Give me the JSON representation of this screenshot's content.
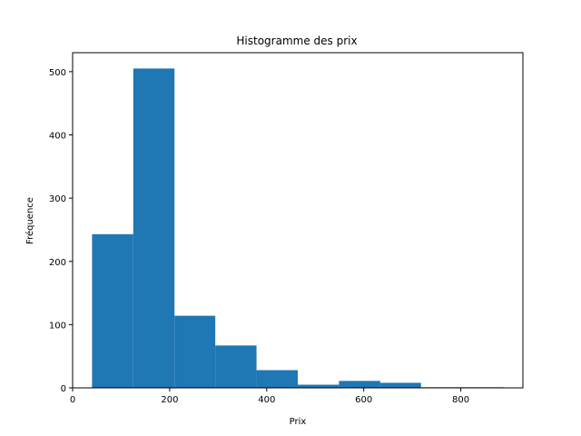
{
  "chart_data": {
    "type": "bar",
    "title": "Histogramme des prix",
    "xlabel": "Prix",
    "ylabel": "Fréquence",
    "bins": [
      {
        "start": 40,
        "end": 125,
        "count": 243
      },
      {
        "start": 125,
        "end": 210,
        "count": 505
      },
      {
        "start": 210,
        "end": 294,
        "count": 114
      },
      {
        "start": 294,
        "end": 379,
        "count": 67
      },
      {
        "start": 379,
        "end": 464,
        "count": 28
      },
      {
        "start": 464,
        "end": 549,
        "count": 5
      },
      {
        "start": 549,
        "end": 634,
        "count": 11
      },
      {
        "start": 634,
        "end": 718,
        "count": 8
      },
      {
        "start": 718,
        "end": 803,
        "count": 1
      },
      {
        "start": 803,
        "end": 888,
        "count": 1
      }
    ],
    "xlim": [
      0,
      928
    ],
    "ylim": [
      0,
      530
    ],
    "x_ticks": [
      0,
      200,
      400,
      600,
      800
    ],
    "y_ticks": [
      0,
      100,
      200,
      300,
      400,
      500
    ],
    "bar_color": "#1f77b4",
    "grid": false
  }
}
